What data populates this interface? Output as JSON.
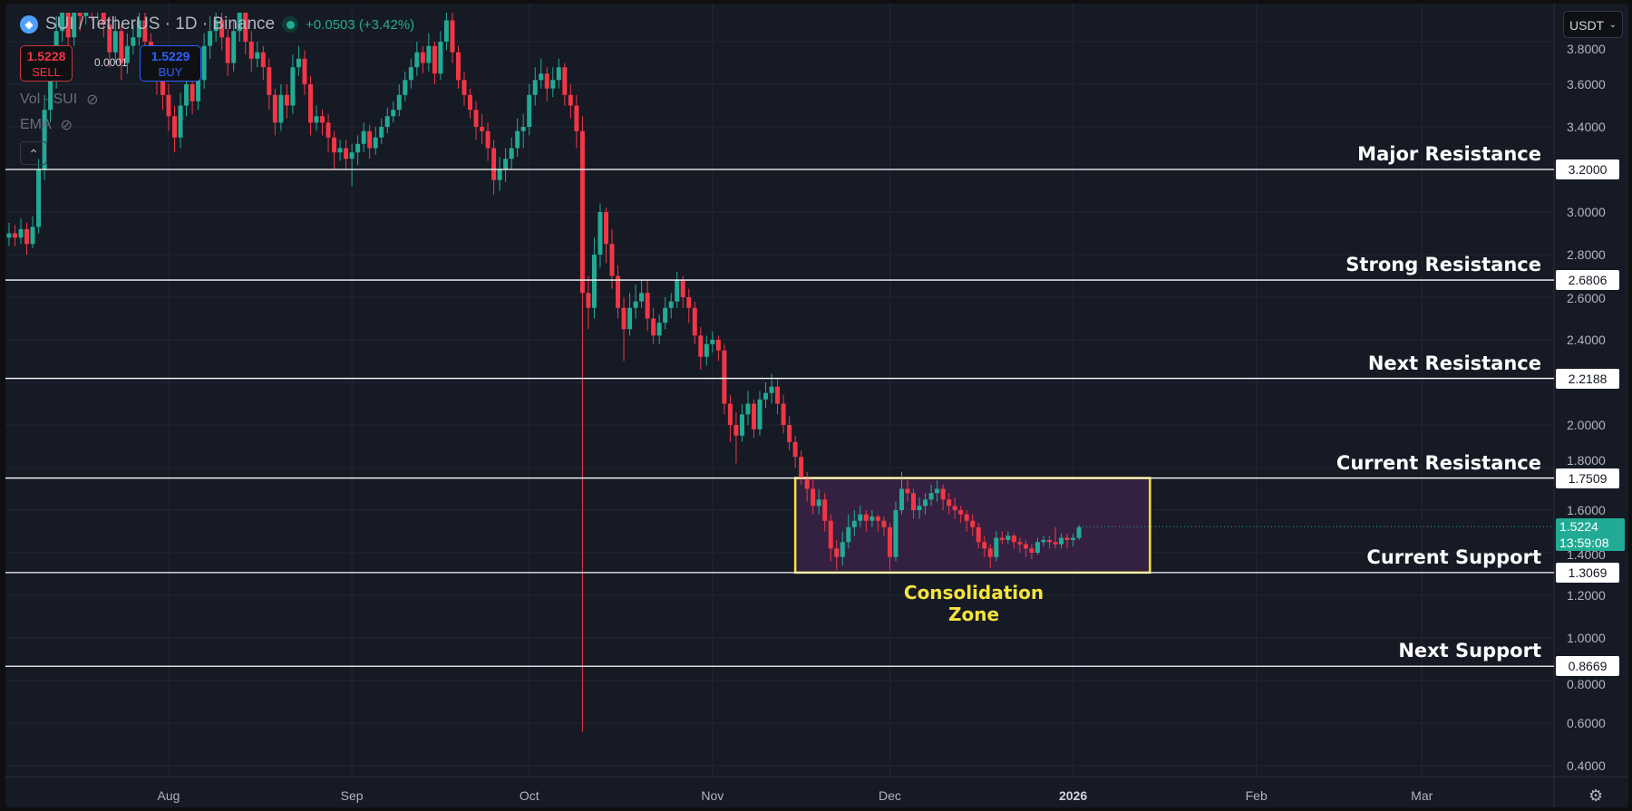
{
  "header": {
    "symbol": "SUI / TetherUS · 1D · Binance",
    "change": "+0.0503 (+3.42%)",
    "sell_price": "1.5228",
    "sell_label": "SELL",
    "spread": "0.0001",
    "buy_price": "1.5229",
    "buy_label": "BUY",
    "indicators": [
      "Vol · SUI",
      "EMA"
    ],
    "currency": "USDT"
  },
  "current_price": {
    "value": "1.5224",
    "countdown": "13:59:08",
    "color": "#22ab94"
  },
  "colors": {
    "up": "#22ab94",
    "down": "#f23645",
    "background": "#161a25",
    "zone_border": "#f5e33b",
    "zone_fill": "#3a2346"
  },
  "chart_data": {
    "type": "candlestick",
    "ylim": [
      0.4,
      3.92
    ],
    "y_ticks": [
      "3.8000",
      "3.6000",
      "3.4000",
      "3.0000",
      "2.8000",
      "2.6000",
      "2.4000",
      "2.0000",
      "1.8000",
      "1.6000",
      "1.4000",
      "1.2000",
      "1.0000",
      "0.8000",
      "0.6000",
      "0.4000"
    ],
    "x_ticks": [
      {
        "label": "Aug",
        "date": "2025-08-01"
      },
      {
        "label": "Sep",
        "date": "2025-09-01"
      },
      {
        "label": "Oct",
        "date": "2025-10-01"
      },
      {
        "label": "Nov",
        "date": "2025-11-01"
      },
      {
        "label": "Dec",
        "date": "2025-12-01"
      },
      {
        "label": "2026",
        "date": "2026-01-01"
      },
      {
        "label": "Feb",
        "date": "2026-02-01"
      },
      {
        "label": "Mar",
        "date": "2026-03-01"
      }
    ],
    "grid": true,
    "levels": [
      {
        "label": "Major Resistance",
        "price": "3.2000"
      },
      {
        "label": "Strong Resistance",
        "price": "2.6806"
      },
      {
        "label": "Next Resistance",
        "price": "2.2188"
      },
      {
        "label": "Current Resistance",
        "price": "1.7509"
      },
      {
        "label": "Current Support",
        "price": "1.3069"
      },
      {
        "label": "Next Support",
        "price": "0.8669"
      }
    ],
    "zone": {
      "label_line1": "Consolidation",
      "label_line2": "Zone",
      "from": "2025-11-15",
      "to": "2026-01-14",
      "top": 1.7509,
      "bottom": 1.3069
    },
    "candles": [
      [
        "2025-07-05",
        2.88,
        2.95,
        2.84,
        2.9
      ],
      [
        "2025-07-06",
        2.9,
        2.94,
        2.84,
        2.88
      ],
      [
        "2025-07-07",
        2.88,
        2.97,
        2.85,
        2.92
      ],
      [
        "2025-07-08",
        2.92,
        2.95,
        2.8,
        2.85
      ],
      [
        "2025-07-09",
        2.85,
        2.98,
        2.83,
        2.93
      ],
      [
        "2025-07-10",
        2.93,
        3.25,
        2.9,
        3.2
      ],
      [
        "2025-07-11",
        3.2,
        3.55,
        3.15,
        3.48
      ],
      [
        "2025-07-12",
        3.48,
        3.7,
        3.42,
        3.62
      ],
      [
        "2025-07-13",
        3.62,
        3.92,
        3.58,
        3.85
      ],
      [
        "2025-07-14",
        3.85,
        4.02,
        3.8,
        3.95
      ],
      [
        "2025-07-15",
        3.95,
        3.99,
        3.75,
        3.82
      ],
      [
        "2025-07-16",
        3.82,
        4.08,
        3.78,
        4.0
      ],
      [
        "2025-07-17",
        4.0,
        4.06,
        3.85,
        3.92
      ],
      [
        "2025-07-18",
        3.92,
        4.12,
        3.88,
        4.05
      ],
      [
        "2025-07-19",
        4.05,
        4.08,
        3.9,
        3.95
      ],
      [
        "2025-07-20",
        3.95,
        4.04,
        3.9,
        3.98
      ],
      [
        "2025-07-21",
        3.98,
        4.02,
        3.82,
        3.88
      ],
      [
        "2025-07-22",
        3.88,
        3.92,
        3.68,
        3.75
      ],
      [
        "2025-07-23",
        3.75,
        3.92,
        3.7,
        3.85
      ],
      [
        "2025-07-24",
        3.85,
        3.88,
        3.62,
        3.7
      ],
      [
        "2025-07-25",
        3.7,
        3.84,
        3.65,
        3.78
      ],
      [
        "2025-07-26",
        3.78,
        3.88,
        3.74,
        3.82
      ],
      [
        "2025-07-27",
        3.82,
        3.96,
        3.78,
        3.9
      ],
      [
        "2025-07-28",
        3.9,
        3.95,
        3.74,
        3.8
      ],
      [
        "2025-07-29",
        3.8,
        3.84,
        3.64,
        3.7
      ],
      [
        "2025-07-30",
        3.7,
        3.75,
        3.55,
        3.62
      ],
      [
        "2025-07-31",
        3.62,
        3.68,
        3.48,
        3.55
      ],
      [
        "2025-08-01",
        3.55,
        3.6,
        3.38,
        3.45
      ],
      [
        "2025-08-02",
        3.45,
        3.5,
        3.28,
        3.35
      ],
      [
        "2025-08-03",
        3.35,
        3.56,
        3.3,
        3.5
      ],
      [
        "2025-08-04",
        3.5,
        3.66,
        3.45,
        3.6
      ],
      [
        "2025-08-05",
        3.6,
        3.64,
        3.46,
        3.52
      ],
      [
        "2025-08-06",
        3.52,
        3.68,
        3.48,
        3.62
      ],
      [
        "2025-08-07",
        3.62,
        3.84,
        3.58,
        3.78
      ],
      [
        "2025-08-08",
        3.78,
        3.92,
        3.72,
        3.85
      ],
      [
        "2025-08-09",
        3.85,
        3.96,
        3.8,
        3.9
      ],
      [
        "2025-08-10",
        3.9,
        3.94,
        3.76,
        3.82
      ],
      [
        "2025-08-11",
        3.82,
        3.86,
        3.64,
        3.7
      ],
      [
        "2025-08-12",
        3.7,
        3.9,
        3.66,
        3.85
      ],
      [
        "2025-08-13",
        3.85,
        4.02,
        3.8,
        3.95
      ],
      [
        "2025-08-14",
        3.95,
        3.98,
        3.74,
        3.8
      ],
      [
        "2025-08-15",
        3.8,
        3.85,
        3.66,
        3.72
      ],
      [
        "2025-08-16",
        3.72,
        3.8,
        3.68,
        3.75
      ],
      [
        "2025-08-17",
        3.75,
        3.78,
        3.62,
        3.68
      ],
      [
        "2025-08-18",
        3.68,
        3.72,
        3.48,
        3.55
      ],
      [
        "2025-08-19",
        3.55,
        3.58,
        3.36,
        3.42
      ],
      [
        "2025-08-20",
        3.42,
        3.6,
        3.38,
        3.55
      ],
      [
        "2025-08-21",
        3.55,
        3.6,
        3.44,
        3.5
      ],
      [
        "2025-08-22",
        3.5,
        3.74,
        3.46,
        3.68
      ],
      [
        "2025-08-23",
        3.68,
        3.78,
        3.64,
        3.72
      ],
      [
        "2025-08-24",
        3.72,
        3.76,
        3.55,
        3.6
      ],
      [
        "2025-08-25",
        3.6,
        3.64,
        3.36,
        3.42
      ],
      [
        "2025-08-26",
        3.42,
        3.5,
        3.38,
        3.45
      ],
      [
        "2025-08-27",
        3.45,
        3.48,
        3.36,
        3.42
      ],
      [
        "2025-08-28",
        3.42,
        3.46,
        3.28,
        3.35
      ],
      [
        "2025-08-29",
        3.35,
        3.38,
        3.2,
        3.28
      ],
      [
        "2025-08-30",
        3.28,
        3.34,
        3.24,
        3.3
      ],
      [
        "2025-08-31",
        3.3,
        3.34,
        3.2,
        3.25
      ],
      [
        "2025-09-01",
        3.25,
        3.32,
        3.12,
        3.28
      ],
      [
        "2025-09-02",
        3.28,
        3.36,
        3.22,
        3.32
      ],
      [
        "2025-09-03",
        3.32,
        3.42,
        3.28,
        3.38
      ],
      [
        "2025-09-04",
        3.38,
        3.41,
        3.25,
        3.3
      ],
      [
        "2025-09-05",
        3.3,
        3.4,
        3.27,
        3.35
      ],
      [
        "2025-09-06",
        3.35,
        3.44,
        3.32,
        3.4
      ],
      [
        "2025-09-07",
        3.4,
        3.49,
        3.37,
        3.45
      ],
      [
        "2025-09-08",
        3.45,
        3.52,
        3.42,
        3.48
      ],
      [
        "2025-09-09",
        3.48,
        3.6,
        3.45,
        3.55
      ],
      [
        "2025-09-10",
        3.55,
        3.66,
        3.52,
        3.62
      ],
      [
        "2025-09-11",
        3.62,
        3.72,
        3.58,
        3.68
      ],
      [
        "2025-09-12",
        3.68,
        3.8,
        3.64,
        3.75
      ],
      [
        "2025-09-13",
        3.75,
        3.78,
        3.65,
        3.7
      ],
      [
        "2025-09-14",
        3.7,
        3.84,
        3.66,
        3.78
      ],
      [
        "2025-09-15",
        3.78,
        3.8,
        3.6,
        3.65
      ],
      [
        "2025-09-16",
        3.65,
        3.85,
        3.62,
        3.8
      ],
      [
        "2025-09-17",
        3.8,
        3.98,
        3.76,
        3.9
      ],
      [
        "2025-09-18",
        3.9,
        3.94,
        3.7,
        3.75
      ],
      [
        "2025-09-19",
        3.75,
        3.78,
        3.58,
        3.62
      ],
      [
        "2025-09-20",
        3.62,
        3.66,
        3.5,
        3.55
      ],
      [
        "2025-09-21",
        3.55,
        3.58,
        3.44,
        3.48
      ],
      [
        "2025-09-22",
        3.48,
        3.52,
        3.34,
        3.4
      ],
      [
        "2025-09-23",
        3.4,
        3.46,
        3.32,
        3.38
      ],
      [
        "2025-09-24",
        3.38,
        3.42,
        3.24,
        3.3
      ],
      [
        "2025-09-25",
        3.3,
        3.34,
        3.08,
        3.15
      ],
      [
        "2025-09-26",
        3.15,
        3.26,
        3.1,
        3.2
      ],
      [
        "2025-09-27",
        3.2,
        3.3,
        3.14,
        3.25
      ],
      [
        "2025-09-28",
        3.25,
        3.35,
        3.2,
        3.3
      ],
      [
        "2025-09-29",
        3.3,
        3.44,
        3.26,
        3.38
      ],
      [
        "2025-09-30",
        3.38,
        3.46,
        3.3,
        3.4
      ],
      [
        "2025-10-01",
        3.4,
        3.6,
        3.36,
        3.55
      ],
      [
        "2025-10-02",
        3.55,
        3.68,
        3.5,
        3.62
      ],
      [
        "2025-10-03",
        3.62,
        3.72,
        3.58,
        3.65
      ],
      [
        "2025-10-04",
        3.65,
        3.68,
        3.52,
        3.58
      ],
      [
        "2025-10-05",
        3.58,
        3.68,
        3.54,
        3.62
      ],
      [
        "2025-10-06",
        3.62,
        3.72,
        3.58,
        3.68
      ],
      [
        "2025-10-07",
        3.68,
        3.7,
        3.5,
        3.55
      ],
      [
        "2025-10-08",
        3.55,
        3.6,
        3.44,
        3.5
      ],
      [
        "2025-10-09",
        3.5,
        3.55,
        3.3,
        3.38
      ],
      [
        "2025-10-10",
        3.38,
        3.45,
        0.56,
        2.62
      ],
      [
        "2025-10-11",
        2.62,
        2.7,
        2.45,
        2.55
      ],
      [
        "2025-10-12",
        2.55,
        2.88,
        2.5,
        2.8
      ],
      [
        "2025-10-13",
        2.8,
        3.04,
        2.74,
        3.0
      ],
      [
        "2025-10-14",
        3.0,
        3.02,
        2.76,
        2.85
      ],
      [
        "2025-10-15",
        2.85,
        2.92,
        2.64,
        2.7
      ],
      [
        "2025-10-16",
        2.7,
        2.75,
        2.5,
        2.55
      ],
      [
        "2025-10-17",
        2.55,
        2.6,
        2.3,
        2.45
      ],
      [
        "2025-10-18",
        2.45,
        2.62,
        2.42,
        2.55
      ],
      [
        "2025-10-19",
        2.55,
        2.66,
        2.5,
        2.58
      ],
      [
        "2025-10-20",
        2.58,
        2.68,
        2.55,
        2.62
      ],
      [
        "2025-10-21",
        2.62,
        2.68,
        2.44,
        2.5
      ],
      [
        "2025-10-22",
        2.5,
        2.55,
        2.38,
        2.42
      ],
      [
        "2025-10-23",
        2.42,
        2.52,
        2.38,
        2.48
      ],
      [
        "2025-10-24",
        2.48,
        2.6,
        2.45,
        2.55
      ],
      [
        "2025-10-25",
        2.55,
        2.62,
        2.5,
        2.58
      ],
      [
        "2025-10-26",
        2.58,
        2.72,
        2.55,
        2.68
      ],
      [
        "2025-10-27",
        2.68,
        2.7,
        2.55,
        2.6
      ],
      [
        "2025-10-28",
        2.6,
        2.64,
        2.48,
        2.55
      ],
      [
        "2025-10-29",
        2.55,
        2.58,
        2.38,
        2.42
      ],
      [
        "2025-10-30",
        2.42,
        2.46,
        2.26,
        2.32
      ],
      [
        "2025-10-31",
        2.32,
        2.42,
        2.28,
        2.38
      ],
      [
        "2025-11-01",
        2.38,
        2.44,
        2.34,
        2.4
      ],
      [
        "2025-11-02",
        2.4,
        2.42,
        2.3,
        2.35
      ],
      [
        "2025-11-03",
        2.35,
        2.38,
        2.05,
        2.1
      ],
      [
        "2025-11-04",
        2.1,
        2.14,
        1.92,
        2.0
      ],
      [
        "2025-11-05",
        2.0,
        2.06,
        1.82,
        1.95
      ],
      [
        "2025-11-06",
        1.95,
        2.1,
        1.92,
        2.05
      ],
      [
        "2025-11-07",
        2.05,
        2.16,
        2.0,
        2.1
      ],
      [
        "2025-11-08",
        2.1,
        2.12,
        1.94,
        1.98
      ],
      [
        "2025-11-09",
        1.98,
        2.16,
        1.95,
        2.12
      ],
      [
        "2025-11-10",
        2.12,
        2.2,
        2.08,
        2.15
      ],
      [
        "2025-11-11",
        2.15,
        2.24,
        2.1,
        2.18
      ],
      [
        "2025-11-12",
        2.18,
        2.22,
        2.05,
        2.1
      ],
      [
        "2025-11-13",
        2.1,
        2.14,
        1.96,
        2.0
      ],
      [
        "2025-11-14",
        2.0,
        2.04,
        1.88,
        1.92
      ],
      [
        "2025-11-15",
        1.92,
        1.95,
        1.8,
        1.85
      ],
      [
        "2025-11-16",
        1.85,
        1.88,
        1.72,
        1.75
      ],
      [
        "2025-11-17",
        1.75,
        1.78,
        1.64,
        1.7
      ],
      [
        "2025-11-18",
        1.7,
        1.74,
        1.58,
        1.62
      ],
      [
        "2025-11-19",
        1.62,
        1.7,
        1.58,
        1.65
      ],
      [
        "2025-11-20",
        1.65,
        1.68,
        1.5,
        1.55
      ],
      [
        "2025-11-21",
        1.55,
        1.58,
        1.36,
        1.42
      ],
      [
        "2025-11-22",
        1.42,
        1.46,
        1.32,
        1.38
      ],
      [
        "2025-11-23",
        1.38,
        1.5,
        1.34,
        1.45
      ],
      [
        "2025-11-24",
        1.45,
        1.58,
        1.42,
        1.52
      ],
      [
        "2025-11-25",
        1.52,
        1.6,
        1.48,
        1.55
      ],
      [
        "2025-11-26",
        1.55,
        1.62,
        1.52,
        1.58
      ],
      [
        "2025-11-27",
        1.58,
        1.6,
        1.5,
        1.55
      ],
      [
        "2025-11-28",
        1.55,
        1.6,
        1.52,
        1.57
      ],
      [
        "2025-11-29",
        1.57,
        1.58,
        1.5,
        1.55
      ],
      [
        "2025-11-30",
        1.55,
        1.57,
        1.48,
        1.52
      ],
      [
        "2025-12-01",
        1.52,
        1.54,
        1.32,
        1.38
      ],
      [
        "2025-12-02",
        1.38,
        1.64,
        1.36,
        1.6
      ],
      [
        "2025-12-03",
        1.6,
        1.78,
        1.58,
        1.7
      ],
      [
        "2025-12-04",
        1.7,
        1.74,
        1.64,
        1.68
      ],
      [
        "2025-12-05",
        1.68,
        1.7,
        1.56,
        1.6
      ],
      [
        "2025-12-06",
        1.6,
        1.66,
        1.56,
        1.62
      ],
      [
        "2025-12-07",
        1.62,
        1.68,
        1.58,
        1.65
      ],
      [
        "2025-12-08",
        1.65,
        1.72,
        1.62,
        1.68
      ],
      [
        "2025-12-09",
        1.68,
        1.74,
        1.64,
        1.7
      ],
      [
        "2025-12-10",
        1.7,
        1.72,
        1.6,
        1.65
      ],
      [
        "2025-12-11",
        1.65,
        1.68,
        1.58,
        1.62
      ],
      [
        "2025-12-12",
        1.62,
        1.66,
        1.56,
        1.6
      ],
      [
        "2025-12-13",
        1.6,
        1.62,
        1.54,
        1.58
      ],
      [
        "2025-12-14",
        1.58,
        1.6,
        1.5,
        1.55
      ],
      [
        "2025-12-15",
        1.55,
        1.58,
        1.48,
        1.52
      ],
      [
        "2025-12-16",
        1.52,
        1.54,
        1.42,
        1.45
      ],
      [
        "2025-12-17",
        1.45,
        1.48,
        1.38,
        1.42
      ],
      [
        "2025-12-18",
        1.42,
        1.44,
        1.33,
        1.38
      ],
      [
        "2025-12-19",
        1.38,
        1.5,
        1.36,
        1.47
      ],
      [
        "2025-12-20",
        1.47,
        1.5,
        1.44,
        1.46
      ],
      [
        "2025-12-21",
        1.46,
        1.5,
        1.44,
        1.48
      ],
      [
        "2025-12-22",
        1.48,
        1.49,
        1.42,
        1.45
      ],
      [
        "2025-12-23",
        1.45,
        1.47,
        1.4,
        1.44
      ],
      [
        "2025-12-24",
        1.44,
        1.46,
        1.38,
        1.42
      ],
      [
        "2025-12-25",
        1.42,
        1.44,
        1.37,
        1.4
      ],
      [
        "2025-12-26",
        1.4,
        1.47,
        1.39,
        1.45
      ],
      [
        "2025-12-27",
        1.45,
        1.48,
        1.43,
        1.46
      ],
      [
        "2025-12-28",
        1.46,
        1.48,
        1.42,
        1.45
      ],
      [
        "2025-12-29",
        1.45,
        1.52,
        1.42,
        1.44
      ],
      [
        "2025-12-30",
        1.44,
        1.49,
        1.42,
        1.47
      ],
      [
        "2025-12-31",
        1.47,
        1.49,
        1.42,
        1.46
      ],
      [
        "2026-01-01",
        1.46,
        1.49,
        1.43,
        1.47
      ],
      [
        "2026-01-02",
        1.47,
        1.53,
        1.46,
        1.52
      ]
    ]
  }
}
